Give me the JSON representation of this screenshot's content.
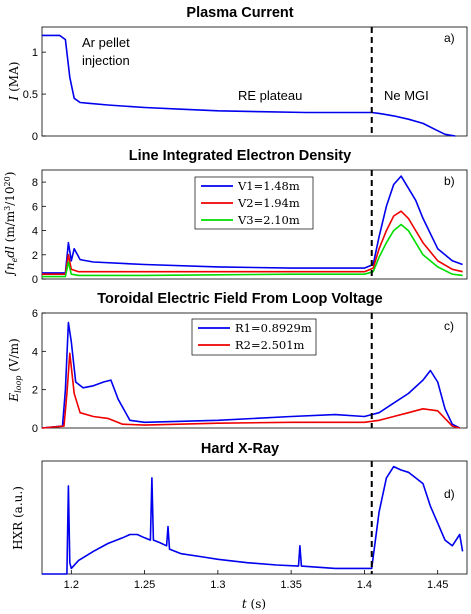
{
  "chart_data": [
    {
      "type": "line",
      "title": "Plasma Current",
      "ylabel": "I (MA)",
      "ylim": [
        0,
        1.3
      ],
      "yticks": [
        0,
        0.5,
        1
      ],
      "xlim": [
        1.18,
        1.47
      ],
      "panel_label": "a)",
      "annotations": [
        "Ar pellet injection",
        "RE plateau",
        "Ne MGI"
      ],
      "vline_x": 1.405,
      "series": [
        {
          "color": "#0000ee",
          "x": [
            1.18,
            1.192,
            1.196,
            1.199,
            1.202,
            1.206,
            1.212,
            1.225,
            1.25,
            1.275,
            1.3,
            1.33,
            1.36,
            1.39,
            1.405,
            1.41,
            1.42,
            1.43,
            1.44,
            1.448,
            1.455,
            1.462
          ],
          "y": [
            1.2,
            1.2,
            1.15,
            0.7,
            0.45,
            0.4,
            0.39,
            0.37,
            0.34,
            0.32,
            0.3,
            0.29,
            0.28,
            0.28,
            0.28,
            0.27,
            0.24,
            0.2,
            0.15,
            0.08,
            0.02,
            0.0
          ]
        }
      ]
    },
    {
      "type": "line",
      "title": "Line Integrated Electron Density",
      "ylabel": "∫nₑdl (m/m³/10²⁰)",
      "ylim": [
        0,
        9
      ],
      "yticks": [
        0,
        2,
        4,
        6,
        8
      ],
      "xlim": [
        1.18,
        1.47
      ],
      "panel_label": "b)",
      "vline_x": 1.405,
      "legend": "top-center",
      "series": [
        {
          "name": "V1=1.48m",
          "color": "#0000ee",
          "x": [
            1.18,
            1.196,
            1.198,
            1.2,
            1.202,
            1.206,
            1.215,
            1.25,
            1.3,
            1.35,
            1.4,
            1.406,
            1.41,
            1.415,
            1.42,
            1.425,
            1.43,
            1.435,
            1.44,
            1.45,
            1.46,
            1.467
          ],
          "y": [
            0.5,
            0.5,
            3.0,
            1.5,
            2.5,
            1.6,
            1.4,
            1.2,
            1.0,
            0.9,
            0.9,
            1.2,
            3.5,
            6.0,
            7.8,
            8.5,
            7.5,
            6.5,
            5.0,
            2.5,
            1.5,
            1.2
          ]
        },
        {
          "name": "V2=1.94m",
          "color": "#ee0000",
          "x": [
            1.18,
            1.196,
            1.198,
            1.2,
            1.205,
            1.25,
            1.3,
            1.35,
            1.4,
            1.406,
            1.41,
            1.415,
            1.42,
            1.425,
            1.43,
            1.435,
            1.44,
            1.45,
            1.46,
            1.467
          ],
          "y": [
            0.4,
            0.4,
            2.0,
            0.8,
            0.6,
            0.6,
            0.6,
            0.6,
            0.6,
            0.9,
            2.5,
            4.0,
            5.2,
            5.6,
            5.0,
            4.0,
            3.0,
            1.5,
            0.8,
            0.6
          ]
        },
        {
          "name": "V3=2.10m",
          "color": "#00dd00",
          "x": [
            1.18,
            1.196,
            1.198,
            1.2,
            1.205,
            1.25,
            1.3,
            1.35,
            1.4,
            1.406,
            1.41,
            1.415,
            1.42,
            1.425,
            1.43,
            1.435,
            1.44,
            1.45,
            1.46,
            1.467
          ],
          "y": [
            0.2,
            0.2,
            1.4,
            0.4,
            0.3,
            0.3,
            0.35,
            0.4,
            0.4,
            0.6,
            1.8,
            3.0,
            4.0,
            4.5,
            4.0,
            3.0,
            2.0,
            1.0,
            0.4,
            0.3
          ]
        }
      ]
    },
    {
      "type": "line",
      "title": "Toroidal Electric Field From Loop Voltage",
      "ylabel": "E_loop (V/m)",
      "ylim": [
        0,
        6
      ],
      "yticks": [
        0,
        2,
        4,
        6
      ],
      "xlim": [
        1.18,
        1.47
      ],
      "panel_label": "c)",
      "vline_x": 1.405,
      "legend": "top-center",
      "series": [
        {
          "name": "R1=0.8929m",
          "color": "#0000ee",
          "x": [
            1.18,
            1.194,
            1.196,
            1.198,
            1.2,
            1.203,
            1.208,
            1.215,
            1.222,
            1.227,
            1.232,
            1.24,
            1.25,
            1.3,
            1.35,
            1.38,
            1.4,
            1.41,
            1.42,
            1.43,
            1.44,
            1.445,
            1.45,
            1.455,
            1.46,
            1.465
          ],
          "y": [
            0.0,
            0.1,
            2.0,
            5.5,
            4.5,
            2.4,
            2.1,
            2.2,
            2.4,
            2.5,
            1.5,
            0.4,
            0.3,
            0.4,
            0.6,
            0.7,
            0.6,
            0.8,
            1.3,
            1.8,
            2.5,
            3.0,
            2.4,
            1.0,
            0.2,
            0.0
          ]
        },
        {
          "name": "R2=2.501m",
          "color": "#ee0000",
          "x": [
            1.18,
            1.195,
            1.197,
            1.199,
            1.202,
            1.206,
            1.215,
            1.225,
            1.235,
            1.25,
            1.3,
            1.35,
            1.4,
            1.41,
            1.42,
            1.43,
            1.44,
            1.45,
            1.455,
            1.46,
            1.465
          ],
          "y": [
            0.0,
            0.1,
            1.8,
            3.9,
            1.8,
            0.8,
            0.6,
            0.5,
            0.2,
            0.15,
            0.25,
            0.3,
            0.3,
            0.4,
            0.6,
            0.8,
            1.0,
            0.9,
            0.5,
            0.1,
            0.0
          ]
        }
      ]
    },
    {
      "type": "line",
      "title": "Hard X-Ray",
      "ylabel": "HXR (a.u.)",
      "xlabel": "t (s)",
      "ylim": [
        0,
        1
      ],
      "xlim": [
        1.18,
        1.47
      ],
      "xticks": [
        1.2,
        1.25,
        1.3,
        1.35,
        1.4,
        1.45
      ],
      "panel_label": "d)",
      "vline_x": 1.405,
      "series": [
        {
          "color": "#0000ee",
          "x": [
            1.18,
            1.197,
            1.198,
            1.199,
            1.2,
            1.205,
            1.215,
            1.225,
            1.235,
            1.24,
            1.245,
            1.25,
            1.254,
            1.255,
            1.256,
            1.26,
            1.265,
            1.266,
            1.267,
            1.275,
            1.29,
            1.3,
            1.32,
            1.34,
            1.355,
            1.356,
            1.357,
            1.38,
            1.405,
            1.41,
            1.415,
            1.42,
            1.425,
            1.43,
            1.435,
            1.44,
            1.445,
            1.45,
            1.455,
            1.46,
            1.465,
            1.467
          ],
          "y": [
            0.0,
            0.0,
            0.78,
            0.1,
            0.05,
            0.12,
            0.2,
            0.27,
            0.32,
            0.35,
            0.35,
            0.32,
            0.3,
            0.85,
            0.3,
            0.28,
            0.25,
            0.42,
            0.22,
            0.18,
            0.15,
            0.13,
            0.1,
            0.08,
            0.07,
            0.25,
            0.07,
            0.05,
            0.05,
            0.55,
            0.85,
            0.95,
            0.92,
            0.9,
            0.85,
            0.8,
            0.6,
            0.45,
            0.3,
            0.25,
            0.35,
            0.2
          ]
        }
      ]
    }
  ],
  "colors": {
    "vline": "#000000"
  }
}
